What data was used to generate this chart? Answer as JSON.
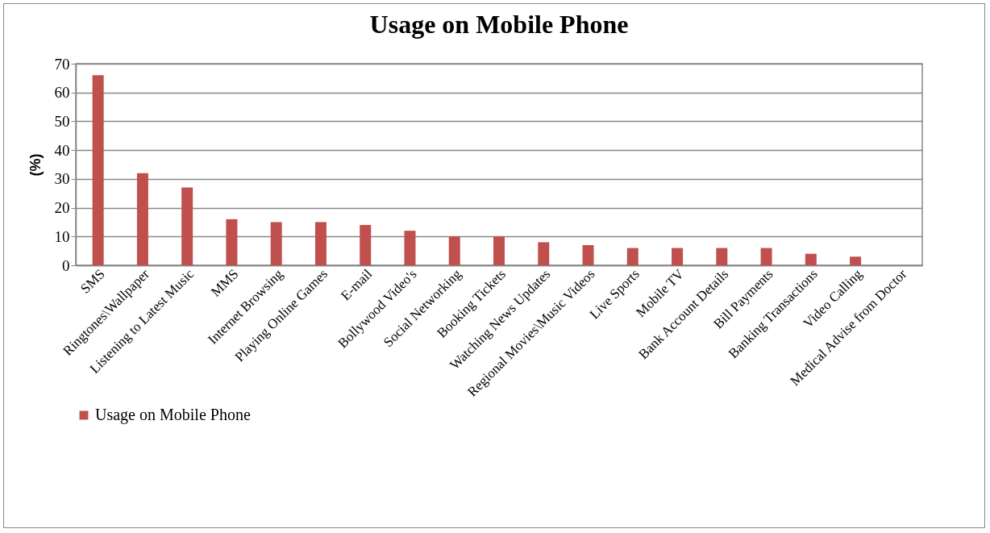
{
  "chart_data": {
    "type": "bar",
    "title": "Usage on Mobile Phone",
    "ylabel": "(%)",
    "categories": [
      "SMS",
      "Ringtones\\Wallpaper",
      "Listening to Latest Music",
      "MMS",
      "Internet Browsing",
      "Playing Online Games",
      "E-mail",
      "Bollywood Video's",
      "Social Networking",
      "Booking Tickets",
      "Watching News Updates",
      "Regional Movies\\Music Videos",
      "Live Sports",
      "Mobile TV",
      "Bank Account Details",
      "Bill Payments",
      "Banking Transactions",
      "Video Calling",
      "Medical Advise from Doctor"
    ],
    "series": [
      {
        "name": "Usage on Mobile Phone",
        "color": "#c0504d",
        "values": [
          66,
          32,
          27,
          16,
          15,
          15,
          14,
          12,
          10,
          10,
          8,
          7,
          6,
          6,
          6,
          6,
          4,
          3,
          0
        ]
      }
    ],
    "ylim": [
      0,
      70
    ],
    "yticks": [
      0,
      10,
      20,
      30,
      40,
      50,
      60,
      70
    ],
    "grid": "y",
    "legend": "bottom"
  }
}
